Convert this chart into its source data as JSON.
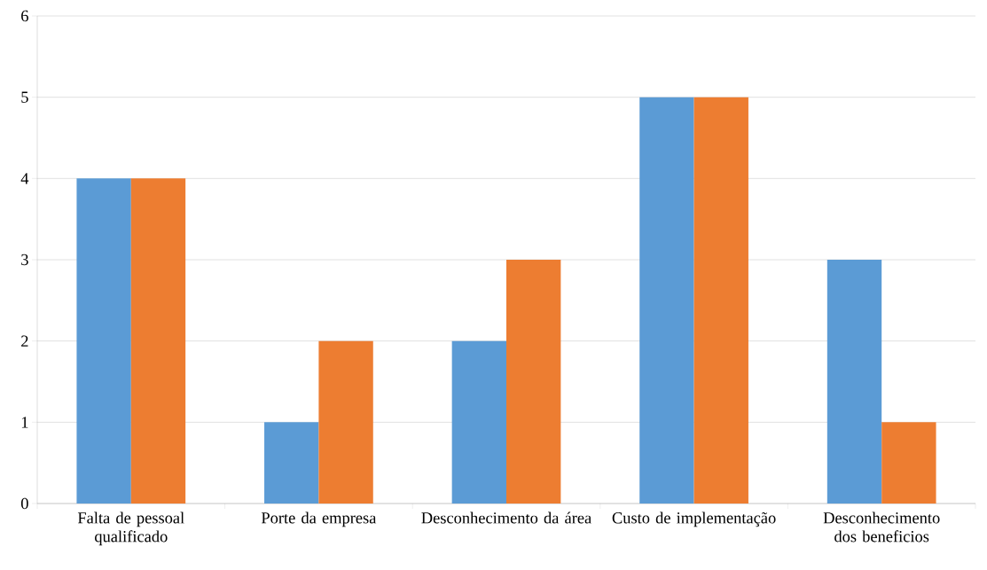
{
  "chart_data": {
    "type": "bar",
    "categories": [
      "Falta de pessoal qualificado",
      "Porte da empresa",
      "Desconhecimento da área",
      "Custo de implementação",
      "Desconhecimento dos beneficios"
    ],
    "series": [
      {
        "color": "#5b9bd5",
        "values": [
          4,
          1,
          2,
          5,
          3
        ]
      },
      {
        "color": "#ed7d31",
        "values": [
          4,
          2,
          3,
          5,
          1
        ]
      }
    ],
    "ylim": [
      0,
      6
    ],
    "yticks": [
      0,
      1,
      2,
      3,
      4,
      5,
      6
    ],
    "grid": "y"
  }
}
